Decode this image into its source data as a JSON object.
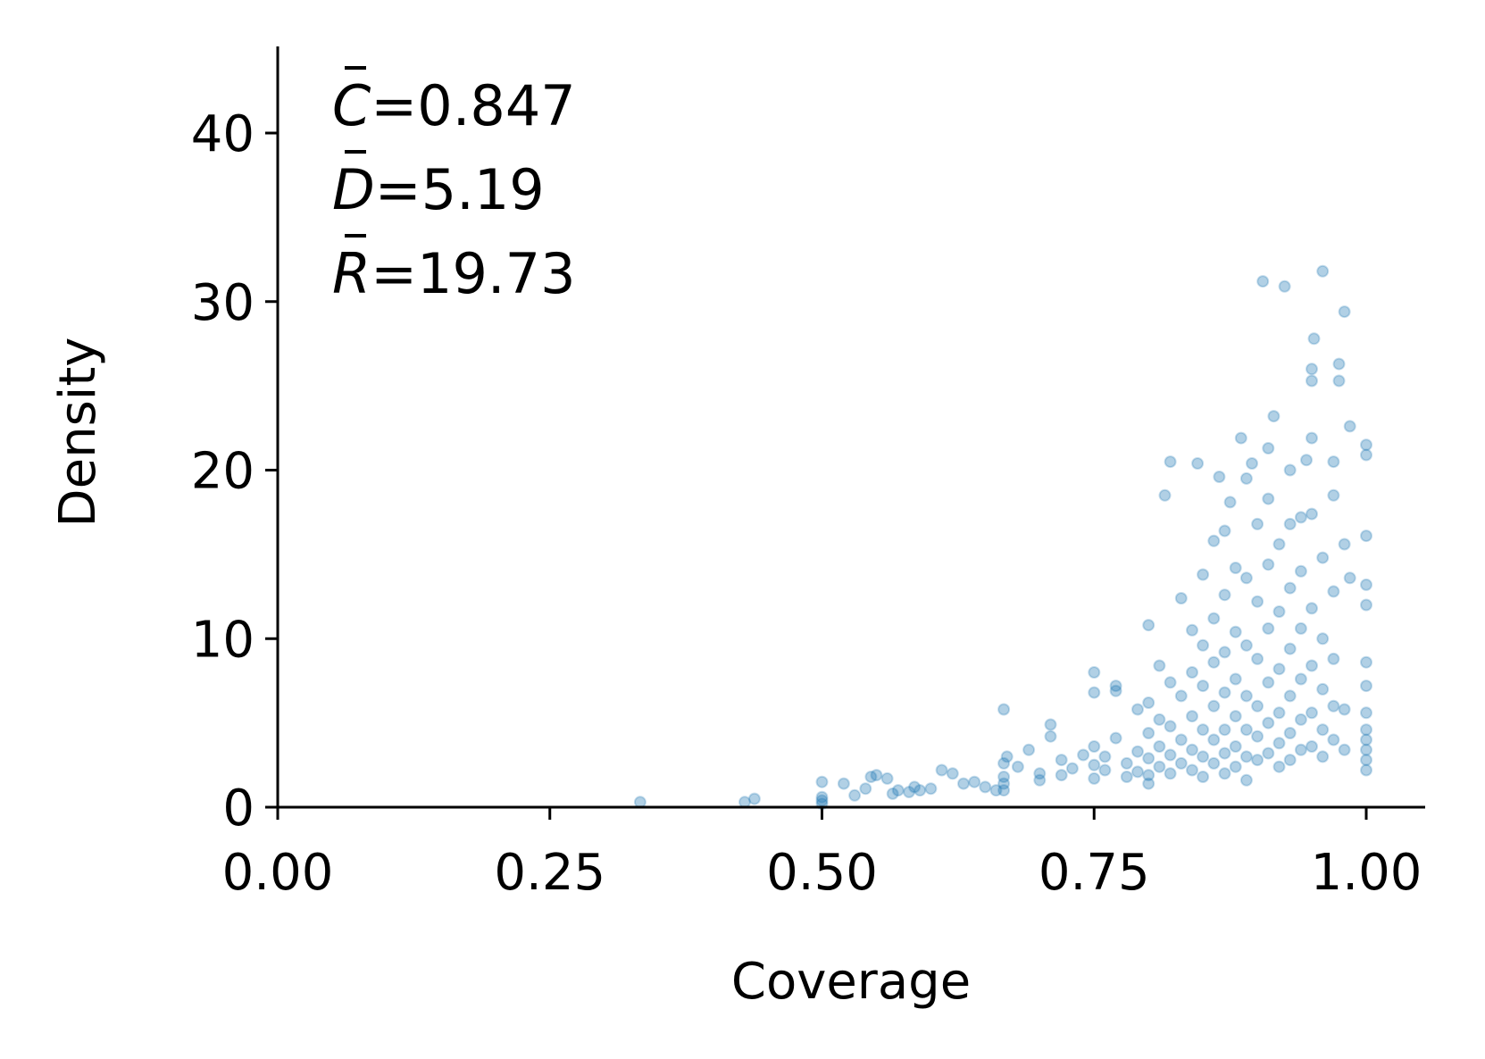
{
  "chart_data": {
    "type": "scatter",
    "xlabel": "Coverage",
    "ylabel": "Density",
    "xlim": [
      0,
      1.05
    ],
    "ylim": [
      0,
      45
    ],
    "x_ticks": [
      "0.00",
      "0.25",
      "0.50",
      "0.75",
      "1.00"
    ],
    "y_ticks": [
      "0",
      "10",
      "20",
      "30",
      "40"
    ],
    "grid": false,
    "point_color": "#1f77b4",
    "point_opacity": 0.35,
    "annotations": [
      {
        "symbol": "C",
        "value": "=0.847"
      },
      {
        "symbol": "D",
        "value": "=5.19"
      },
      {
        "symbol": "R",
        "value": "=19.73"
      }
    ],
    "points": [
      [
        0.333,
        0.3
      ],
      [
        0.429,
        0.3
      ],
      [
        0.438,
        0.5
      ],
      [
        0.5,
        0.4
      ],
      [
        0.5,
        0.6
      ],
      [
        0.5,
        1.5
      ],
      [
        0.5,
        0.2
      ],
      [
        0.52,
        1.4
      ],
      [
        0.53,
        0.7
      ],
      [
        0.54,
        1.1
      ],
      [
        0.545,
        1.8
      ],
      [
        0.55,
        1.9
      ],
      [
        0.56,
        1.7
      ],
      [
        0.565,
        0.8
      ],
      [
        0.57,
        1.0
      ],
      [
        0.58,
        0.9
      ],
      [
        0.585,
        1.2
      ],
      [
        0.59,
        1.0
      ],
      [
        0.6,
        1.1
      ],
      [
        0.61,
        2.2
      ],
      [
        0.62,
        2.0
      ],
      [
        0.63,
        1.4
      ],
      [
        0.64,
        1.5
      ],
      [
        0.65,
        1.2
      ],
      [
        0.66,
        1.0
      ],
      [
        0.667,
        5.8
      ],
      [
        0.667,
        2.6
      ],
      [
        0.667,
        1.8
      ],
      [
        0.667,
        1.4
      ],
      [
        0.667,
        1.0
      ],
      [
        0.67,
        3.0
      ],
      [
        0.68,
        2.4
      ],
      [
        0.69,
        3.4
      ],
      [
        0.7,
        2.0
      ],
      [
        0.7,
        1.6
      ],
      [
        0.71,
        4.9
      ],
      [
        0.71,
        4.2
      ],
      [
        0.72,
        2.8
      ],
      [
        0.72,
        1.9
      ],
      [
        0.73,
        2.3
      ],
      [
        0.74,
        3.1
      ],
      [
        0.75,
        8.0
      ],
      [
        0.75,
        6.8
      ],
      [
        0.75,
        3.6
      ],
      [
        0.75,
        2.5
      ],
      [
        0.75,
        1.7
      ],
      [
        0.76,
        3.0
      ],
      [
        0.76,
        2.2
      ],
      [
        0.77,
        6.9
      ],
      [
        0.77,
        7.2
      ],
      [
        0.77,
        4.1
      ],
      [
        0.78,
        2.6
      ],
      [
        0.78,
        1.8
      ],
      [
        0.79,
        5.8
      ],
      [
        0.79,
        3.3
      ],
      [
        0.79,
        2.1
      ],
      [
        0.8,
        10.8
      ],
      [
        0.8,
        6.2
      ],
      [
        0.8,
        4.4
      ],
      [
        0.8,
        2.9
      ],
      [
        0.8,
        1.9
      ],
      [
        0.8,
        1.4
      ],
      [
        0.81,
        8.4
      ],
      [
        0.81,
        5.2
      ],
      [
        0.81,
        3.6
      ],
      [
        0.81,
        2.4
      ],
      [
        0.815,
        18.5
      ],
      [
        0.82,
        20.5
      ],
      [
        0.82,
        7.4
      ],
      [
        0.82,
        4.8
      ],
      [
        0.82,
        3.1
      ],
      [
        0.82,
        2.0
      ],
      [
        0.83,
        12.4
      ],
      [
        0.83,
        6.6
      ],
      [
        0.83,
        4.0
      ],
      [
        0.83,
        2.6
      ],
      [
        0.84,
        10.5
      ],
      [
        0.84,
        8.0
      ],
      [
        0.84,
        5.4
      ],
      [
        0.84,
        3.4
      ],
      [
        0.84,
        2.2
      ],
      [
        0.845,
        20.4
      ],
      [
        0.85,
        13.8
      ],
      [
        0.85,
        9.6
      ],
      [
        0.85,
        7.2
      ],
      [
        0.85,
        4.6
      ],
      [
        0.85,
        3.0
      ],
      [
        0.85,
        1.8
      ],
      [
        0.86,
        15.8
      ],
      [
        0.86,
        11.2
      ],
      [
        0.86,
        8.6
      ],
      [
        0.86,
        6.0
      ],
      [
        0.86,
        4.0
      ],
      [
        0.86,
        2.6
      ],
      [
        0.865,
        19.6
      ],
      [
        0.87,
        16.4
      ],
      [
        0.87,
        12.6
      ],
      [
        0.87,
        9.2
      ],
      [
        0.87,
        6.8
      ],
      [
        0.87,
        4.6
      ],
      [
        0.87,
        3.2
      ],
      [
        0.87,
        2.0
      ],
      [
        0.875,
        18.1
      ],
      [
        0.88,
        14.2
      ],
      [
        0.88,
        10.4
      ],
      [
        0.88,
        7.6
      ],
      [
        0.88,
        5.4
      ],
      [
        0.88,
        3.6
      ],
      [
        0.88,
        2.4
      ],
      [
        0.885,
        21.9
      ],
      [
        0.89,
        19.5
      ],
      [
        0.89,
        13.6
      ],
      [
        0.89,
        9.6
      ],
      [
        0.89,
        6.6
      ],
      [
        0.89,
        4.6
      ],
      [
        0.89,
        3.0
      ],
      [
        0.89,
        1.6
      ],
      [
        0.895,
        20.4
      ],
      [
        0.9,
        16.8
      ],
      [
        0.9,
        12.2
      ],
      [
        0.9,
        8.8
      ],
      [
        0.9,
        6.0
      ],
      [
        0.9,
        4.2
      ],
      [
        0.9,
        2.8
      ],
      [
        0.905,
        31.2
      ],
      [
        0.91,
        21.3
      ],
      [
        0.91,
        18.3
      ],
      [
        0.91,
        14.4
      ],
      [
        0.91,
        10.6
      ],
      [
        0.91,
        7.4
      ],
      [
        0.91,
        5.0
      ],
      [
        0.91,
        3.2
      ],
      [
        0.915,
        23.2
      ],
      [
        0.92,
        15.6
      ],
      [
        0.92,
        11.6
      ],
      [
        0.92,
        8.2
      ],
      [
        0.92,
        5.6
      ],
      [
        0.92,
        3.8
      ],
      [
        0.92,
        2.4
      ],
      [
        0.925,
        30.9
      ],
      [
        0.93,
        20.0
      ],
      [
        0.93,
        16.8
      ],
      [
        0.93,
        13.0
      ],
      [
        0.93,
        9.4
      ],
      [
        0.93,
        6.6
      ],
      [
        0.93,
        4.4
      ],
      [
        0.93,
        2.8
      ],
      [
        0.94,
        17.2
      ],
      [
        0.94,
        14.0
      ],
      [
        0.94,
        10.6
      ],
      [
        0.94,
        7.6
      ],
      [
        0.94,
        5.2
      ],
      [
        0.94,
        3.4
      ],
      [
        0.945,
        20.6
      ],
      [
        0.95,
        26.0
      ],
      [
        0.95,
        25.3
      ],
      [
        0.95,
        21.9
      ],
      [
        0.95,
        17.4
      ],
      [
        0.95,
        11.8
      ],
      [
        0.95,
        8.4
      ],
      [
        0.95,
        5.6
      ],
      [
        0.95,
        3.6
      ],
      [
        0.952,
        27.8
      ],
      [
        0.96,
        31.8
      ],
      [
        0.96,
        14.8
      ],
      [
        0.96,
        10.0
      ],
      [
        0.96,
        7.0
      ],
      [
        0.96,
        4.6
      ],
      [
        0.96,
        3.0
      ],
      [
        0.97,
        20.5
      ],
      [
        0.97,
        18.5
      ],
      [
        0.97,
        12.8
      ],
      [
        0.97,
        8.8
      ],
      [
        0.97,
        6.0
      ],
      [
        0.97,
        4.0
      ],
      [
        0.975,
        26.3
      ],
      [
        0.975,
        25.3
      ],
      [
        0.98,
        29.4
      ],
      [
        0.98,
        15.6
      ],
      [
        0.98,
        5.8
      ],
      [
        0.98,
        3.4
      ],
      [
        0.985,
        22.6
      ],
      [
        0.985,
        13.6
      ],
      [
        1.0,
        21.5
      ],
      [
        1.0,
        20.9
      ],
      [
        1.0,
        16.1
      ],
      [
        1.0,
        13.2
      ],
      [
        1.0,
        12.0
      ],
      [
        1.0,
        8.6
      ],
      [
        1.0,
        7.2
      ],
      [
        1.0,
        5.6
      ],
      [
        1.0,
        4.6
      ],
      [
        1.0,
        4.0
      ],
      [
        1.0,
        3.4
      ],
      [
        1.0,
        2.8
      ],
      [
        1.0,
        2.2
      ]
    ]
  }
}
